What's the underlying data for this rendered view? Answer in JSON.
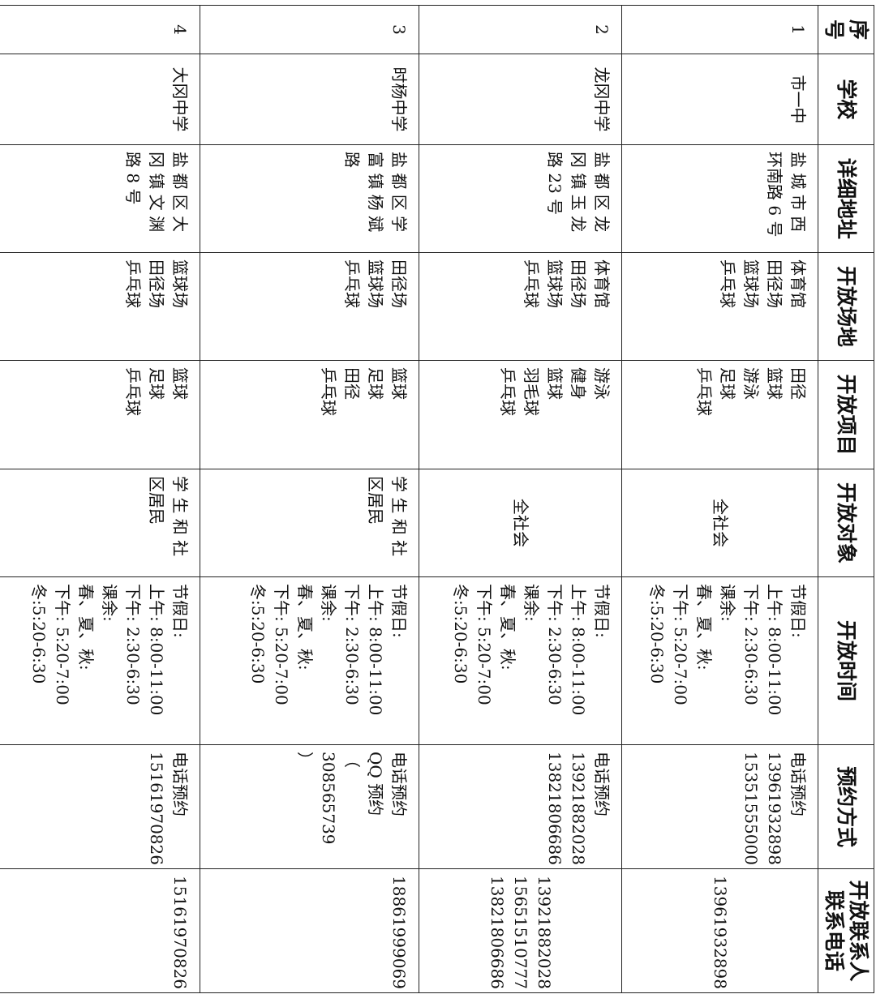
{
  "headers": [
    "序\n号",
    "学校",
    "详细地址",
    "开放场地",
    "开放项目",
    "开放对象",
    "开放时间",
    "预约方式",
    "开放联系人\n联系电话"
  ],
  "rows": [
    {
      "no": "1",
      "school": "市一中",
      "address": "盐 城 市 西\n环南路 6 号",
      "venues": "体育馆\n田径场\n篮球场\n乒乓球",
      "items": "田径\n篮球\n游泳\n足球\n乒乓球",
      "audience": "全社会",
      "hours": "节假日:\n上午: 8:00-11:00\n下午: 2:30-6:30\n课余:\n春、夏、秋:\n下午: 5:20-7:00\n冬:5:20-6:30",
      "booking": "电话预约\n13961932898\n15351555000",
      "contact": "13961932898"
    },
    {
      "no": "2",
      "school": "龙冈中学",
      "address": "盐 都 区 龙\n冈 镇 玉 龙\n路 23 号",
      "venues": "体育馆\n田径场\n篮球场\n乒乓球",
      "items": "游泳\n健身\n篮球\n羽毛球\n乒乓球",
      "audience": "全社会",
      "hours": "节假日:\n上午: 8:00-11:00\n下午: 2:30-6:30\n课余:\n春、夏、秋:\n下午: 5:20-7:00\n冬:5:20-6:30",
      "booking": "电话预约\n13921882028\n13821806686",
      "contact": "13921882028\n15651510777\n13821806686"
    },
    {
      "no": "3",
      "school": "时杨中学",
      "address": "盐 都 区 学\n富 镇 杨 斌\n路",
      "venues": "田径场\n篮球场\n乒乓球",
      "items": "篮球\n足球\n田径\n乒乓球",
      "audience": "学 生 和 社\n区居民",
      "hours": "节假日:\n上午: 8:00-11:00\n下午: 2:30-6:30\n课余:\n春、夏、秋:\n下午: 5:20-7:00\n冬:5:20-6:30",
      "booking": "电话预约\nQQ 预约\n（ 308565739\n）",
      "contact": "18861999069"
    },
    {
      "no": "4",
      "school": "大冈中学",
      "address": "盐 都 区 大\n冈 镇 文 渊\n路 8 号",
      "venues": "篮球场\n田径场\n乒乓球",
      "items": "篮球\n足球\n乒乓球",
      "audience": "学 生 和 社\n区居民",
      "hours": "节假日:\n上午: 8:00-11:00\n下午: 2:30-6:30\n课余:\n春、夏、秋:\n下午: 5:20-7:00\n冬:5:20-6:30",
      "booking": "电话预约\n15161970826",
      "contact": "15161970826"
    }
  ]
}
